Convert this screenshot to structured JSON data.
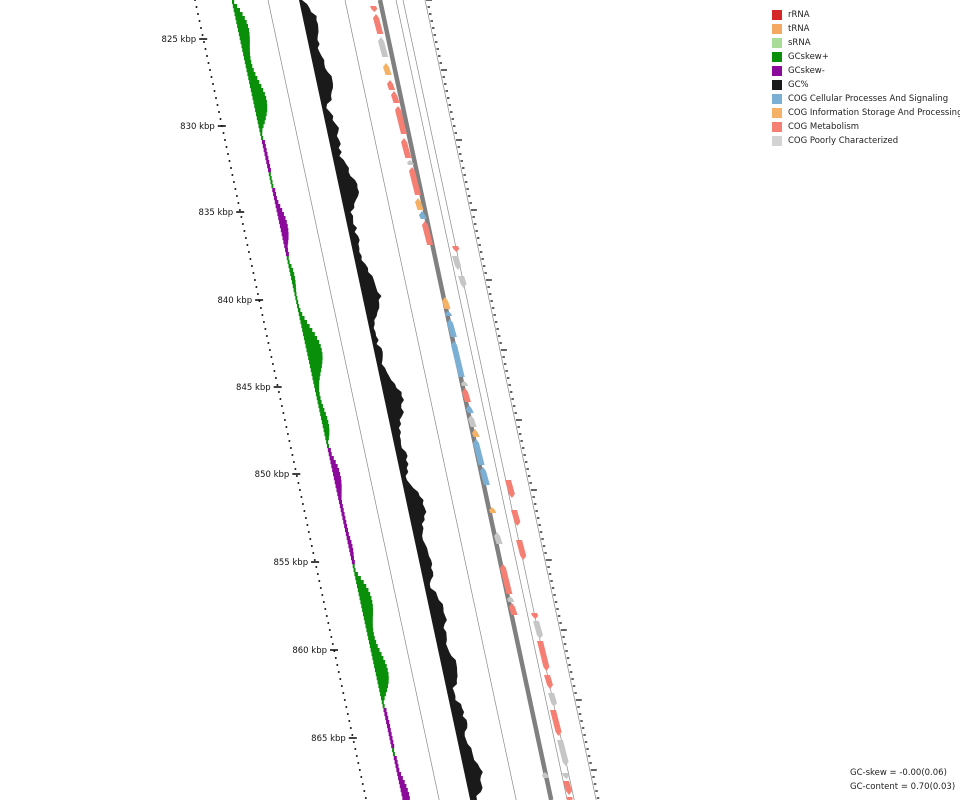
{
  "tick_labels": [
    "825 kbp",
    "830 kbp",
    "835 kbp",
    "840 kbp",
    "845 kbp",
    "850 kbp",
    "855 kbp",
    "860 kbp",
    "865 kbp"
  ],
  "legend": [
    {
      "label": "rRNA",
      "color": "#d62728"
    },
    {
      "label": "tRNA",
      "color": "#f5a85f"
    },
    {
      "label": "sRNA",
      "color": "#a8dc98"
    },
    {
      "label": "GCskew+",
      "color": "#0a8f0a"
    },
    {
      "label": "GCskew-",
      "color": "#8b0a9b"
    },
    {
      "label": "GC%",
      "color": "#1a1a1a"
    },
    {
      "label": "COG Cellular Processes And Signaling",
      "color": "#7bafd4"
    },
    {
      "label": "COG Information Storage And Processing",
      "color": "#f5b267"
    },
    {
      "label": "COG Metabolism",
      "color": "#f47f72"
    },
    {
      "label": "COG Poorly Characterized",
      "color": "#d3d3d3"
    }
  ],
  "stats": {
    "gc_skew": "GC-skew = -0.00(0.06)",
    "gc_content": "GC-content = 0.70(0.03)"
  },
  "colors": {
    "metabolism": "#f47f72",
    "info": "#f5b267",
    "cellular": "#7bafd4",
    "poorly": "#c6c6c6",
    "gc": "#1a1a1a",
    "skew_pos": "#0a8f0a",
    "skew_neg": "#8b0a9b",
    "backbone": "#808080"
  }
}
